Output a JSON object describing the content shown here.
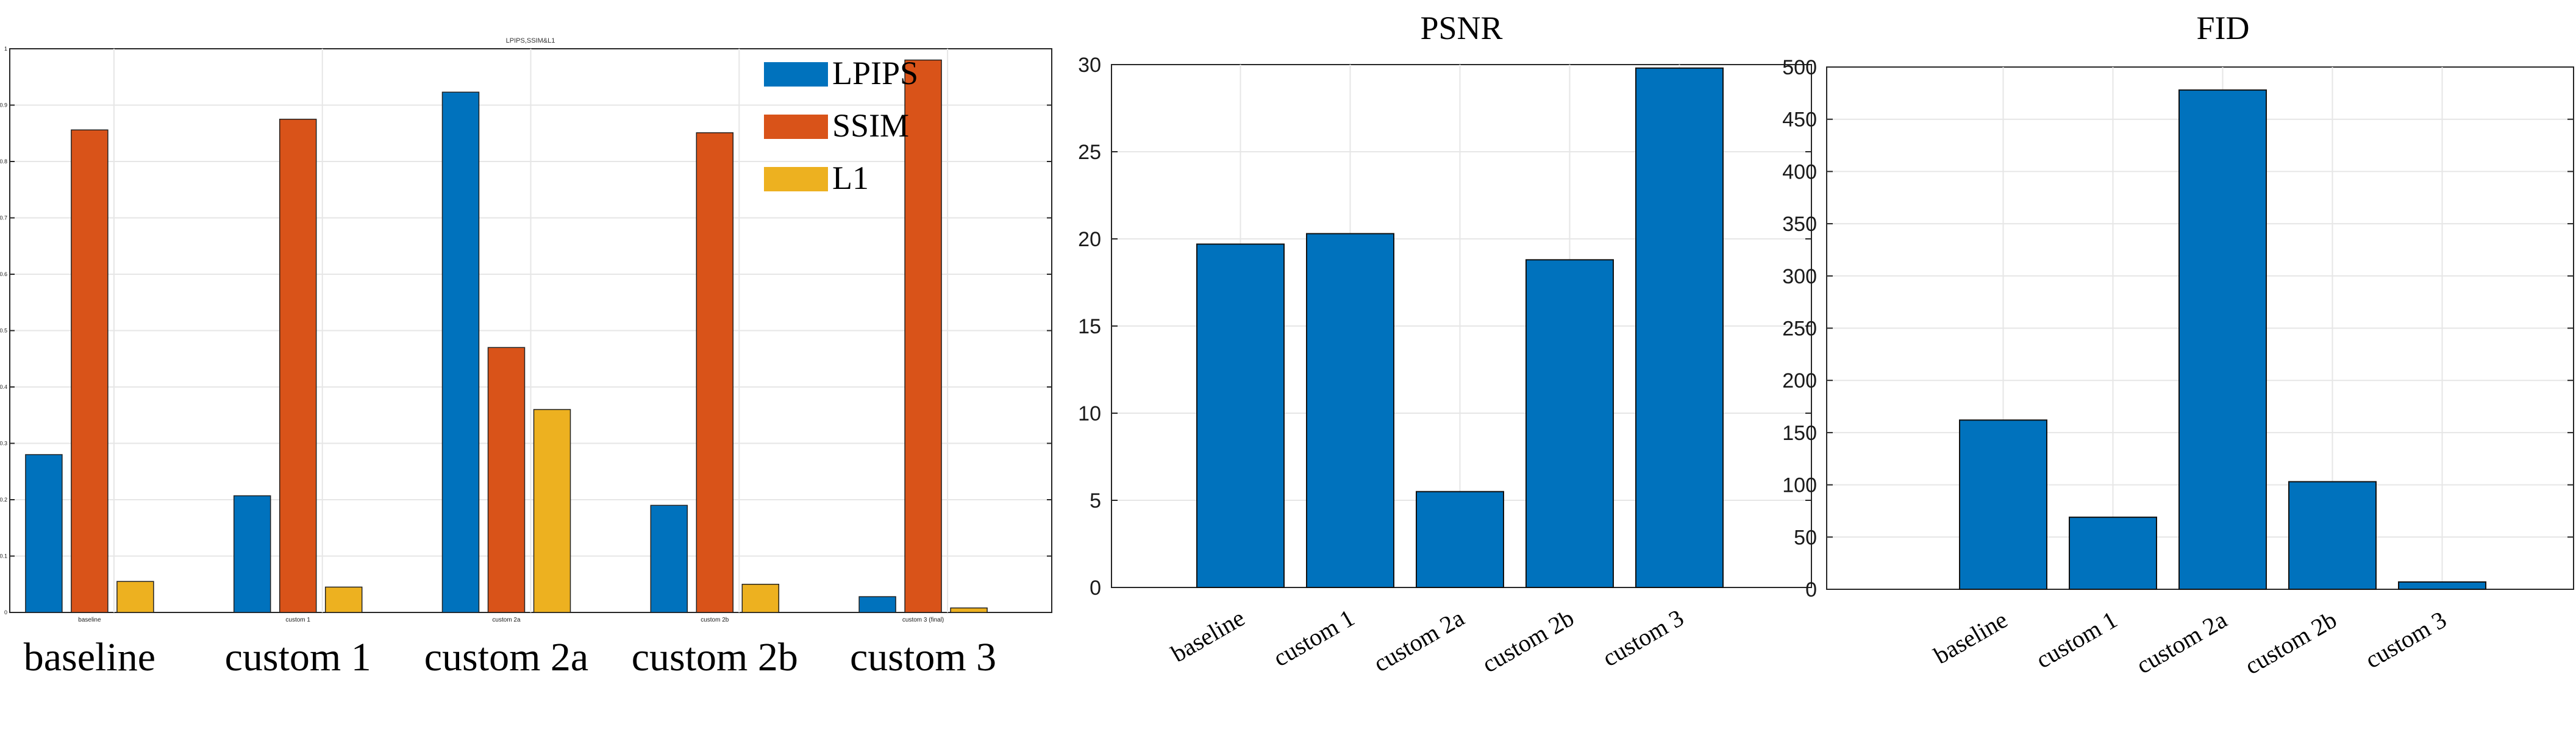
{
  "chart_data": [
    {
      "type": "bar",
      "title": "LPIPS,SSIM&L1",
      "categories": [
        "baseline",
        "custom 1",
        "custom 2a",
        "custom 2b",
        "custom 3 (final)"
      ],
      "category_labels_large": [
        "baseline",
        "custom 1",
        "custom 2a",
        "custom 2b",
        "custom 3"
      ],
      "series": [
        {
          "name": "LPIPS",
          "color": "#0072BD",
          "values": [
            0.28,
            0.207,
            0.923,
            0.19,
            0.028
          ]
        },
        {
          "name": "SSIM",
          "color": "#D95319",
          "values": [
            0.856,
            0.875,
            0.47,
            0.851,
            0.98
          ]
        },
        {
          "name": "L1",
          "color": "#EDB120",
          "values": [
            0.055,
            0.045,
            0.36,
            0.05,
            0.008
          ]
        }
      ],
      "ylim": [
        0,
        1
      ],
      "yticks": [
        "0",
        "0.1",
        "0.2",
        "0.3",
        "0.4",
        "0.5",
        "0.6",
        "0.7",
        "0.8",
        "0.9",
        "1"
      ],
      "grid": true,
      "legend": "top-right"
    },
    {
      "type": "bar",
      "title": "PSNR",
      "categories": [
        "baseline",
        "custom 1",
        "custom 2a",
        "custom 2b",
        "custom 3"
      ],
      "values": [
        19.7,
        20.3,
        5.5,
        18.8,
        29.8
      ],
      "color": "#0072BD",
      "ylim": [
        0,
        30
      ],
      "yticks": [
        "0",
        "5",
        "10",
        "15",
        "20",
        "25",
        "30"
      ],
      "grid": true
    },
    {
      "type": "bar",
      "title": "FID",
      "categories": [
        "baseline",
        "custom 1",
        "custom 2a",
        "custom 2b",
        "custom 3"
      ],
      "values": [
        162,
        69,
        478,
        103,
        7
      ],
      "color": "#0072BD",
      "ylim": [
        0,
        500
      ],
      "yticks": [
        "0",
        "50",
        "100",
        "150",
        "200",
        "250",
        "300",
        "350",
        "400",
        "450",
        "500"
      ],
      "grid": true
    }
  ]
}
